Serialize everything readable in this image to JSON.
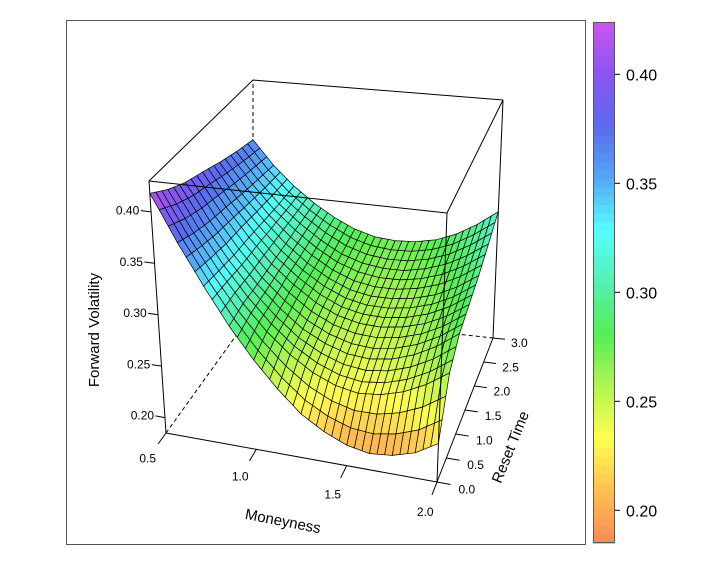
{
  "chart_data": {
    "type": "surface",
    "xlabel": "Moneyness",
    "ylabel": "Reset Time",
    "zlabel": "Forward Volatility",
    "x_ticks": [
      "0.5",
      "1.0",
      "1.5",
      "2.0"
    ],
    "y_ticks": [
      "0.0",
      "0.5",
      "1.0",
      "1.5",
      "2.0",
      "2.5",
      "3.0"
    ],
    "z_ticks": [
      "0.20",
      "0.25",
      "0.30",
      "0.35",
      "0.40"
    ],
    "xlim": [
      0.5,
      2.0
    ],
    "ylim": [
      0.0,
      3.0
    ],
    "zlim": [
      0.185,
      0.43
    ],
    "grid_x": [
      0.5,
      0.625,
      0.75,
      0.875,
      1.0,
      1.125,
      1.25,
      1.375,
      1.5,
      1.625,
      1.75,
      1.875,
      2.0
    ],
    "grid_y": [
      0.0,
      0.5,
      1.0,
      1.5,
      2.0,
      2.5,
      3.0
    ],
    "z": [
      [
        0.418,
        0.373,
        0.334,
        0.299,
        0.27,
        0.246,
        0.226,
        0.213,
        0.204,
        0.2,
        0.202,
        0.208,
        0.22
      ],
      [
        0.405,
        0.365,
        0.331,
        0.302,
        0.278,
        0.259,
        0.245,
        0.236,
        0.232,
        0.234,
        0.24,
        0.25,
        0.264
      ],
      [
        0.395,
        0.359,
        0.328,
        0.302,
        0.281,
        0.264,
        0.253,
        0.246,
        0.244,
        0.247,
        0.254,
        0.265,
        0.28
      ],
      [
        0.388,
        0.355,
        0.327,
        0.303,
        0.285,
        0.27,
        0.26,
        0.255,
        0.254,
        0.257,
        0.263,
        0.273,
        0.287
      ],
      [
        0.38,
        0.35,
        0.325,
        0.304,
        0.287,
        0.274,
        0.265,
        0.261,
        0.261,
        0.264,
        0.27,
        0.28,
        0.294
      ],
      [
        0.373,
        0.346,
        0.323,
        0.305,
        0.29,
        0.278,
        0.271,
        0.268,
        0.268,
        0.272,
        0.279,
        0.29,
        0.304
      ],
      [
        0.367,
        0.342,
        0.322,
        0.306,
        0.293,
        0.283,
        0.277,
        0.275,
        0.276,
        0.28,
        0.288,
        0.3,
        0.315
      ]
    ],
    "colorbar": {
      "range": [
        0.185,
        0.424
      ],
      "ticks": [
        "0.20",
        "0.25",
        "0.30",
        "0.35",
        "0.40"
      ],
      "colors": [
        "#f98a55",
        "#ffbf50",
        "#ffff50",
        "#b5f550",
        "#55ee55",
        "#55f0b0",
        "#55ffff",
        "#55a8f5",
        "#5a6af0",
        "#8a55f0",
        "#cc55f0"
      ]
    }
  }
}
